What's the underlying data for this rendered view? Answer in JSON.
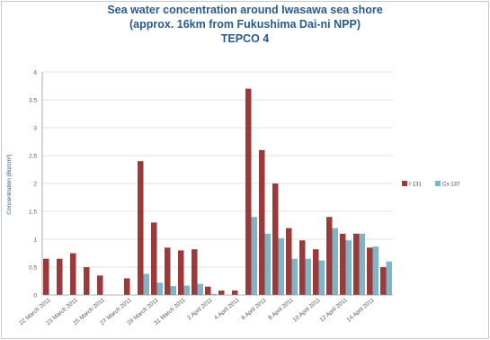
{
  "chart_data": {
    "type": "bar",
    "title": "Sea water concentration around Iwasawa sea shore",
    "subtitle": "(approx. 16km from Fukushima Dai-ni NPP)",
    "subtitle2": "TEPCO  4",
    "ylabel": "Concentration (Bq/cm³)",
    "xlabel": "",
    "ylim": [
      0,
      4
    ],
    "yticks": [
      "0",
      "0.5",
      "1",
      "1.5",
      "2",
      "2.5",
      "3",
      "3.5",
      "4"
    ],
    "grid": "horizontal",
    "legend_position": "right",
    "categories": [
      "22 March 2011",
      "",
      "23 March 2011",
      "",
      "25 March 2011",
      "",
      "27 March 2011",
      "",
      "29 March 2011",
      "",
      "31 March 2011",
      "",
      "2 April 2011",
      "",
      "4 April 2011",
      "",
      "6 April 2011",
      "",
      "8 April 2011",
      "",
      "10 April 2011",
      "",
      "12 April 2011",
      "",
      "14 April 2011",
      ""
    ],
    "series": [
      {
        "name": "I-131",
        "color": "#9b3a3a",
        "values": [
          0.65,
          0.65,
          0.75,
          0.5,
          0.35,
          0,
          0.3,
          2.4,
          1.3,
          0.85,
          0.8,
          0.82,
          0.15,
          0.08,
          0.08,
          3.7,
          2.6,
          2.0,
          1.2,
          0.98,
          0.82,
          1.4,
          1.1,
          1.1,
          0.85,
          0.5
        ]
      },
      {
        "name": "Cs-137",
        "color": "#7fb5c6",
        "values": [
          0,
          0,
          0,
          0,
          0,
          0,
          0,
          0.38,
          0.22,
          0.16,
          0.17,
          0.2,
          0.02,
          0,
          0,
          1.4,
          1.1,
          1.02,
          0.65,
          0.65,
          0.62,
          1.2,
          0.98,
          1.1,
          0.87,
          0.6
        ]
      }
    ]
  }
}
